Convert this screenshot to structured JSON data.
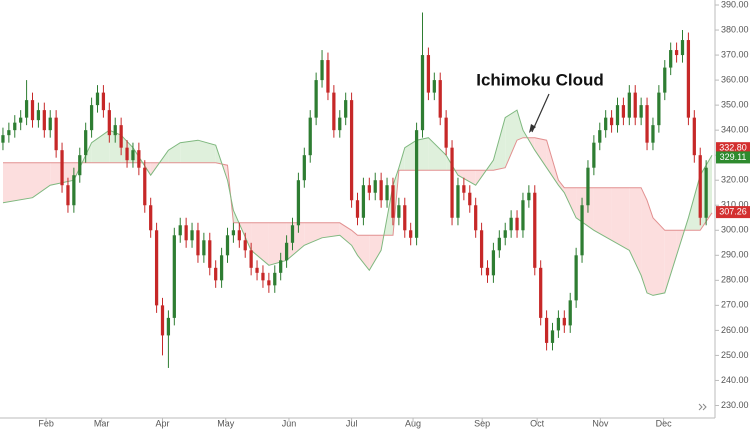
{
  "chart_data": {
    "type": "candlestick",
    "annotation": "Ichimoku Cloud",
    "xlim": [
      -0.5,
      120.5
    ],
    "ylim": [
      225,
      392
    ],
    "xticks": [
      {
        "value": 7.3,
        "label": "Feb"
      },
      {
        "value": 16.7,
        "label": "Mar"
      },
      {
        "value": 27.0,
        "label": "Apr"
      },
      {
        "value": 37.7,
        "label": "May"
      },
      {
        "value": 48.4,
        "label": "Jun"
      },
      {
        "value": 59.0,
        "label": "Jul"
      },
      {
        "value": 69.4,
        "label": "Aug"
      },
      {
        "value": 81.1,
        "label": "Sep"
      },
      {
        "value": 90.4,
        "label": "Oct"
      },
      {
        "value": 101.1,
        "label": "Nov"
      },
      {
        "value": 111.8,
        "label": "Dec"
      }
    ],
    "yticks": [
      {
        "value": 230,
        "label": "230.00"
      },
      {
        "value": 240,
        "label": "240.00"
      },
      {
        "value": 250,
        "label": "250.00"
      },
      {
        "value": 260,
        "label": "260.00"
      },
      {
        "value": 270,
        "label": "270.00"
      },
      {
        "value": 280,
        "label": "280.00"
      },
      {
        "value": 290,
        "label": "290.00"
      },
      {
        "value": 300,
        "label": "300.00"
      },
      {
        "value": 310,
        "label": "310.00"
      },
      {
        "value": 320,
        "label": "320.00"
      },
      {
        "value": 330,
        "label": "330.00"
      },
      {
        "value": 340,
        "label": "340.00"
      },
      {
        "value": 350,
        "label": "350.00"
      },
      {
        "value": 360,
        "label": "360.00"
      },
      {
        "value": 370,
        "label": "370.00"
      },
      {
        "value": 380,
        "label": "380.00"
      },
      {
        "value": 390,
        "label": "390.00"
      }
    ],
    "up_color": "#2e7d32",
    "down_color": "#c62828",
    "candles": {
      "x": [
        0,
        1,
        2,
        3,
        4,
        5,
        6,
        7,
        8,
        9,
        10,
        11,
        12,
        13,
        14,
        15,
        16,
        17,
        18,
        19,
        20,
        21,
        22,
        23,
        24,
        25,
        26,
        27,
        28,
        29,
        30,
        31,
        32,
        33,
        34,
        35,
        36,
        37,
        38,
        39,
        40,
        41,
        42,
        43,
        44,
        45,
        46,
        47,
        48,
        49,
        50,
        51,
        52,
        53,
        54,
        55,
        56,
        57,
        58,
        59,
        60,
        61,
        62,
        63,
        64,
        65,
        66,
        67,
        68,
        69,
        70,
        71,
        72,
        73,
        74,
        75,
        76,
        77,
        78,
        79,
        80,
        81,
        82,
        83,
        84,
        85,
        86,
        87,
        88,
        89,
        90,
        91,
        92,
        93,
        94,
        95,
        96,
        97,
        98,
        99,
        100,
        101,
        102,
        103,
        104,
        105,
        106,
        107,
        108,
        109,
        110,
        111,
        112,
        113,
        114,
        115,
        116,
        117,
        118,
        119
      ],
      "open": [
        335,
        338,
        340,
        343,
        345,
        352,
        344,
        348,
        340,
        345,
        332,
        318,
        310,
        322,
        330,
        340,
        350,
        355,
        348,
        338,
        342,
        333,
        328,
        332,
        325,
        310,
        300,
        270,
        258,
        265,
        298,
        302,
        296,
        300,
        290,
        296,
        285,
        280,
        290,
        298,
        300,
        296,
        292,
        285,
        283,
        280,
        278,
        283,
        288,
        295,
        302,
        320,
        330,
        345,
        360,
        368,
        355,
        340,
        345,
        352,
        312,
        305,
        318,
        315,
        320,
        312,
        318,
        305,
        310,
        300,
        297,
        340,
        370,
        355,
        360,
        345,
        333,
        305,
        318,
        315,
        310,
        300,
        285,
        282,
        292,
        297,
        300,
        305,
        300,
        312,
        315,
        285,
        265,
        255,
        260,
        265,
        262,
        272,
        290,
        310,
        325,
        335,
        340,
        345,
        342,
        350,
        345,
        355,
        345,
        350,
        335,
        342,
        355,
        365,
        372,
        370,
        376,
        345,
        330,
        305
      ],
      "high": [
        341,
        343,
        346,
        348,
        360,
        355,
        351,
        351,
        348,
        348,
        335,
        321,
        325,
        333,
        343,
        353,
        358,
        358,
        351,
        345,
        345,
        336,
        335,
        335,
        328,
        313,
        303,
        273,
        268,
        301,
        305,
        305,
        303,
        303,
        299,
        299,
        288,
        293,
        301,
        303,
        303,
        299,
        295,
        288,
        286,
        283,
        286,
        291,
        298,
        305,
        323,
        333,
        348,
        363,
        372,
        371,
        358,
        348,
        355,
        355,
        315,
        321,
        321,
        323,
        323,
        321,
        321,
        313,
        313,
        303,
        343,
        387,
        373,
        363,
        363,
        348,
        336,
        321,
        321,
        318,
        313,
        303,
        288,
        295,
        300,
        303,
        308,
        308,
        315,
        318,
        318,
        288,
        268,
        263,
        268,
        268,
        275,
        293,
        313,
        328,
        338,
        343,
        348,
        348,
        353,
        353,
        358,
        358,
        353,
        353,
        345,
        358,
        368,
        375,
        375,
        380,
        379,
        348,
        333,
        328
      ],
      "low": [
        332,
        335,
        337,
        340,
        342,
        341,
        341,
        337,
        337,
        329,
        315,
        307,
        307,
        319,
        327,
        337,
        347,
        345,
        335,
        335,
        330,
        325,
        325,
        322,
        307,
        297,
        267,
        250,
        245,
        262,
        295,
        293,
        293,
        287,
        287,
        282,
        277,
        277,
        287,
        295,
        293,
        289,
        282,
        280,
        277,
        275,
        275,
        280,
        285,
        292,
        299,
        317,
        327,
        342,
        357,
        352,
        337,
        337,
        342,
        309,
        302,
        302,
        312,
        312,
        309,
        309,
        302,
        302,
        297,
        294,
        294,
        337,
        352,
        352,
        342,
        330,
        302,
        302,
        312,
        307,
        297,
        282,
        279,
        279,
        289,
        294,
        297,
        297,
        297,
        309,
        282,
        262,
        252,
        252,
        257,
        259,
        259,
        269,
        287,
        307,
        322,
        332,
        337,
        339,
        339,
        342,
        342,
        342,
        342,
        332,
        332,
        339,
        352,
        362,
        367,
        367,
        342,
        327,
        302,
        302
      ],
      "close": [
        338,
        340,
        343,
        345,
        352,
        344,
        348,
        340,
        345,
        332,
        318,
        310,
        322,
        330,
        340,
        350,
        355,
        348,
        338,
        342,
        333,
        328,
        332,
        325,
        310,
        300,
        270,
        258,
        265,
        298,
        302,
        296,
        300,
        290,
        296,
        285,
        280,
        290,
        298,
        300,
        296,
        292,
        285,
        283,
        280,
        278,
        283,
        288,
        295,
        302,
        320,
        330,
        345,
        360,
        368,
        355,
        340,
        345,
        352,
        312,
        305,
        318,
        315,
        320,
        312,
        318,
        305,
        310,
        300,
        297,
        340,
        370,
        355,
        360,
        345,
        333,
        305,
        318,
        315,
        310,
        300,
        285,
        282,
        292,
        297,
        300,
        305,
        300,
        312,
        315,
        285,
        265,
        255,
        260,
        265,
        262,
        272,
        290,
        310,
        325,
        335,
        340,
        345,
        342,
        350,
        345,
        355,
        345,
        350,
        335,
        342,
        355,
        365,
        372,
        370,
        376,
        345,
        330,
        305,
        325
      ]
    },
    "cloud": {
      "x": [
        0,
        5,
        8,
        12,
        15,
        18,
        20,
        22,
        25,
        28,
        30,
        33,
        36,
        38,
        39,
        42,
        45,
        48,
        51,
        54,
        57,
        59,
        60,
        62,
        64,
        66,
        67,
        68,
        70,
        72,
        75,
        77,
        80,
        83,
        85,
        87,
        88,
        90,
        92,
        94,
        95,
        97,
        100,
        103,
        106,
        108,
        109,
        110,
        112,
        114,
        116,
        118,
        120
      ],
      "span_a": [
        311,
        313,
        318,
        320,
        335,
        340,
        338,
        333,
        322,
        332,
        335,
        336,
        334,
        320,
        308,
        292,
        286,
        288,
        294,
        297,
        298,
        294,
        290,
        284,
        292,
        318,
        325,
        333,
        336,
        337,
        330,
        322,
        318,
        328,
        345,
        348,
        340,
        332,
        325,
        318,
        315,
        305,
        300,
        296,
        292,
        282,
        275,
        274,
        275,
        290,
        305,
        322,
        330
      ],
      "span_b": [
        327,
        327,
        327,
        327,
        327,
        327,
        327,
        327,
        327,
        327,
        327,
        327,
        327,
        326,
        303,
        303,
        303,
        303,
        303,
        303,
        303,
        300,
        298,
        298,
        298,
        298,
        324,
        324,
        324,
        324,
        324,
        324,
        324,
        324,
        325,
        336,
        337,
        337,
        336,
        320,
        317,
        317,
        317,
        317,
        317,
        317,
        312,
        305,
        300,
        300,
        300,
        300,
        307
      ],
      "span_a_color": "#7fb87f",
      "span_b_color": "#e29090",
      "bull_fill": "#dff0dc",
      "bear_fill": "#fcdede"
    },
    "price_tags": [
      {
        "value": 332.8,
        "label": "332.80",
        "color": "#d32f2f"
      },
      {
        "value": 329.11,
        "label": "329.11",
        "color": "#2e8b2e"
      },
      {
        "value": 307.26,
        "label": "307.26",
        "color": "#d32f2f"
      }
    ]
  }
}
